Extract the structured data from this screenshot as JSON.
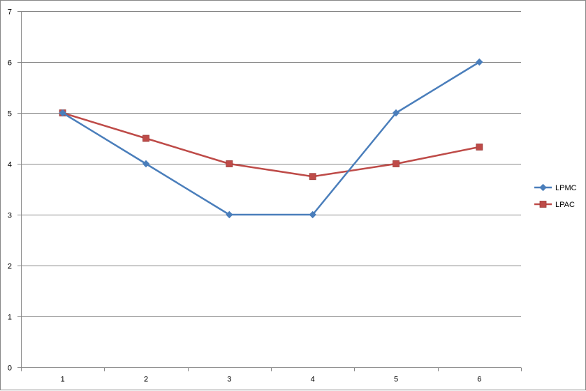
{
  "chart_data": {
    "type": "line",
    "x": [
      1,
      2,
      3,
      4,
      5,
      6
    ],
    "categories": [
      "1",
      "2",
      "3",
      "4",
      "5",
      "6"
    ],
    "series": [
      {
        "name": "LPMC",
        "values": [
          5,
          4,
          3,
          3,
          5,
          6
        ],
        "color": "#4A7EBB",
        "marker": "diamond"
      },
      {
        "name": "LPAC",
        "values": [
          5,
          4.5,
          4,
          3.75,
          4,
          4.33
        ],
        "color": "#BE4B48",
        "marker": "square"
      }
    ],
    "yticks": [
      "0",
      "1",
      "2",
      "3",
      "4",
      "5",
      "6",
      "7"
    ],
    "ylim": [
      0,
      7
    ],
    "grid": true,
    "legend": "right"
  }
}
